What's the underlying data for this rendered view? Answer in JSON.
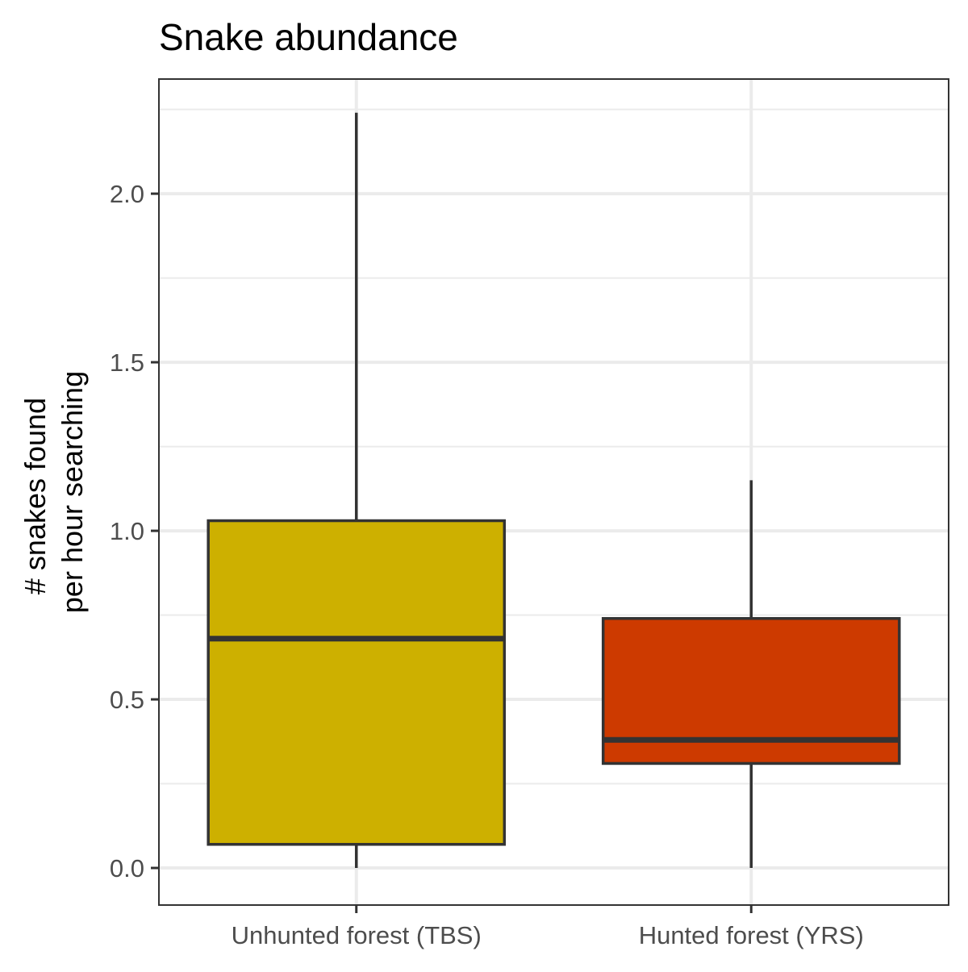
{
  "chart_data": {
    "type": "boxplot",
    "title": "Snake abundance",
    "xlabel": "",
    "ylabel_lines": [
      "# snakes found",
      "per hour searching"
    ],
    "categories": [
      "Unhunted forest (TBS)",
      "Hunted forest (YRS)"
    ],
    "boxes": [
      {
        "category": "Unhunted forest (TBS)",
        "min": 0.0,
        "q1": 0.07,
        "median": 0.68,
        "q3": 1.03,
        "max": 2.24,
        "color": "#CDB000"
      },
      {
        "category": "Hunted forest (YRS)",
        "min": 0.0,
        "q1": 0.31,
        "median": 0.38,
        "q3": 0.74,
        "max": 1.15,
        "color": "#CD3A00"
      }
    ],
    "yticks": [
      0.0,
      0.5,
      1.0,
      1.5,
      2.0
    ],
    "ytick_labels": [
      "0.0",
      "0.5",
      "1.0",
      "1.5",
      "2.0"
    ],
    "ylim": [
      -0.11,
      2.34
    ],
    "grid": true,
    "legend": "none"
  },
  "colors": {
    "grid": "#ebebeb",
    "panel_border": "#333333",
    "box_outline": "#333333",
    "tick_label": "#4d4d4d"
  }
}
